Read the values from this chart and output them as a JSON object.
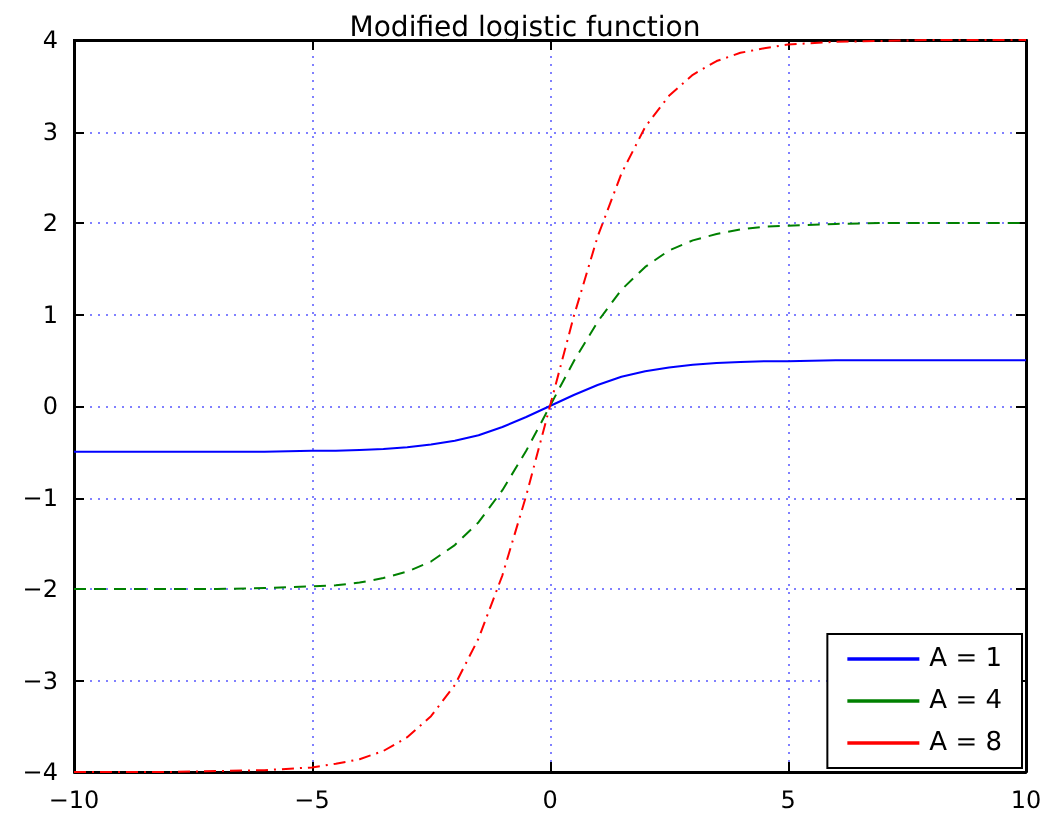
{
  "chart_data": {
    "type": "line",
    "title": "Modified logistic function",
    "x": [
      -10,
      -8,
      -7,
      -6,
      -5,
      -4.5,
      -4,
      -3.5,
      -3,
      -2.5,
      -2,
      -1.5,
      -1,
      -0.5,
      0,
      0.5,
      1,
      1.5,
      2,
      2.5,
      3,
      3.5,
      4,
      4.5,
      5,
      6,
      7,
      8,
      10
    ],
    "series": [
      {
        "name": "A = 1",
        "color": "#0000ff",
        "line_style": "solid",
        "values": [
          -0.5,
          -0.5,
          -0.5,
          -0.5,
          -0.49,
          -0.49,
          -0.48,
          -0.47,
          -0.45,
          -0.42,
          -0.38,
          -0.32,
          -0.23,
          -0.12,
          0,
          0.12,
          0.23,
          0.32,
          0.38,
          0.42,
          0.45,
          0.47,
          0.48,
          0.49,
          0.49,
          0.5,
          0.5,
          0.5,
          0.5
        ]
      },
      {
        "name": "A = 4",
        "color": "#008000",
        "line_style": "dashed",
        "values": [
          -2,
          -2,
          -2,
          -1.99,
          -1.97,
          -1.96,
          -1.93,
          -1.88,
          -1.81,
          -1.7,
          -1.52,
          -1.27,
          -0.92,
          -0.49,
          0,
          0.49,
          0.92,
          1.27,
          1.52,
          1.7,
          1.81,
          1.88,
          1.93,
          1.96,
          1.97,
          1.99,
          2,
          2,
          2
        ]
      },
      {
        "name": "A = 8",
        "color": "#ff0000",
        "line_style": "dashdot",
        "values": [
          -4,
          -4,
          -3.99,
          -3.98,
          -3.95,
          -3.91,
          -3.86,
          -3.77,
          -3.62,
          -3.39,
          -3.05,
          -2.54,
          -1.85,
          -0.98,
          0,
          0.98,
          1.85,
          2.54,
          3.05,
          3.39,
          3.62,
          3.77,
          3.86,
          3.91,
          3.95,
          3.98,
          3.99,
          4,
          4
        ]
      }
    ],
    "xlim": [
      -10,
      10
    ],
    "xticks": [
      -10,
      -5,
      0,
      5,
      10
    ],
    "ylim": [
      -4,
      4
    ],
    "yticks": [
      -4,
      -3,
      -2,
      -1,
      0,
      1,
      2,
      3,
      4
    ],
    "grid": true,
    "legend": "bottom right",
    "marker": "none"
  }
}
